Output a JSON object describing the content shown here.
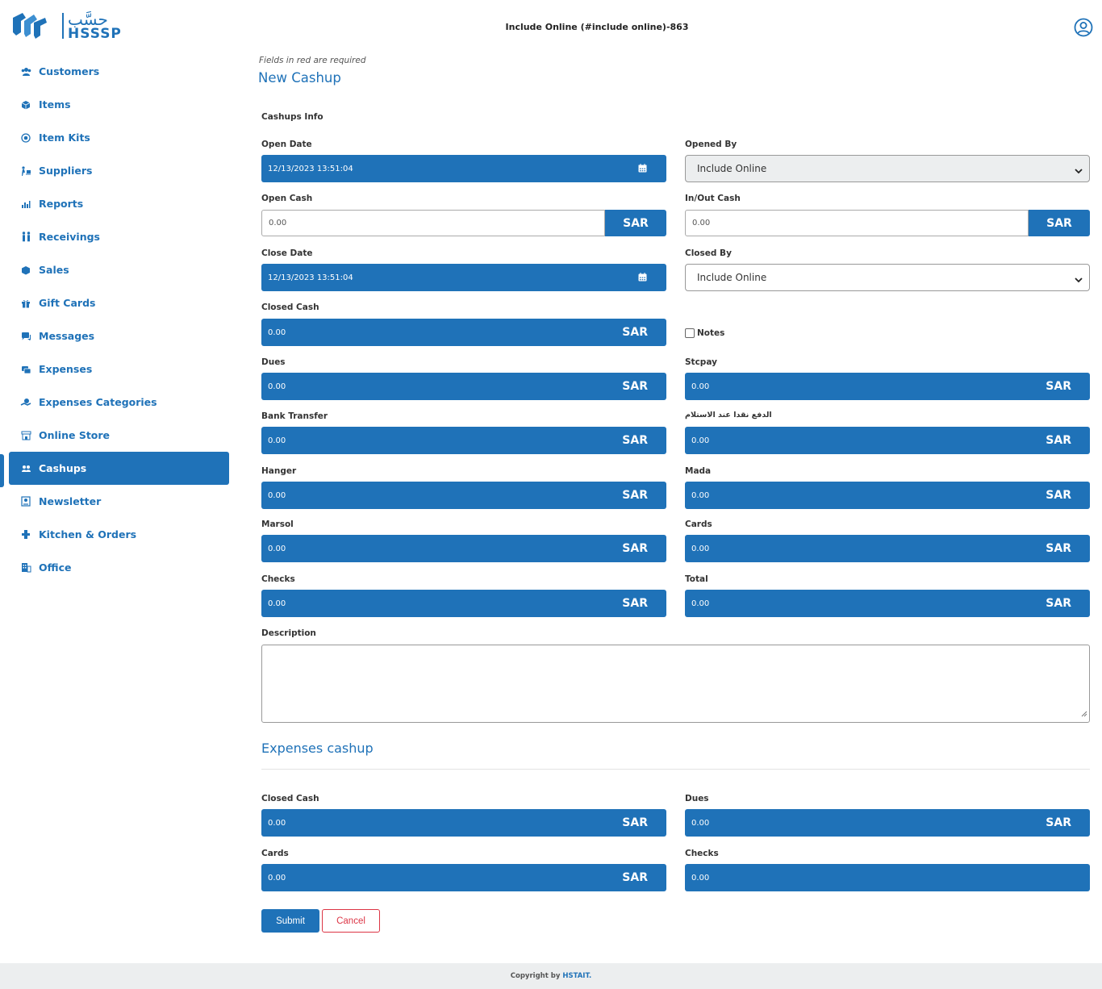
{
  "header": {
    "logo_ar": "حسَّب",
    "logo_en": "HSSSP",
    "title": "Include Online (#include online)-863"
  },
  "sidebar": {
    "items": [
      {
        "label": "Customers",
        "icon": "users-icon"
      },
      {
        "label": "Items",
        "icon": "box-icon"
      },
      {
        "label": "Item Kits",
        "icon": "kit-icon"
      },
      {
        "label": "Suppliers",
        "icon": "supplier-icon"
      },
      {
        "label": "Reports",
        "icon": "chart-icon"
      },
      {
        "label": "Receivings",
        "icon": "receiving-icon"
      },
      {
        "label": "Sales",
        "icon": "sales-icon"
      },
      {
        "label": "Gift Cards",
        "icon": "gift-icon"
      },
      {
        "label": "Messages",
        "icon": "message-icon"
      },
      {
        "label": "Expenses",
        "icon": "expenses-icon"
      },
      {
        "label": "Expenses Categories",
        "icon": "categories-icon"
      },
      {
        "label": "Online Store",
        "icon": "store-icon"
      },
      {
        "label": "Cashups",
        "icon": "cashups-icon",
        "active": true
      },
      {
        "label": "Newsletter",
        "icon": "newsletter-icon"
      },
      {
        "label": "Kitchen & Orders",
        "icon": "kitchen-icon"
      },
      {
        "label": "Office",
        "icon": "office-icon"
      }
    ]
  },
  "form": {
    "required_note": "Fields in red are required",
    "title": "New Cashup",
    "section": "Cashups Info",
    "currency": "SAR",
    "open_date": {
      "label": "Open Date",
      "value": "12/13/2023 13:51:04"
    },
    "opened_by": {
      "label": "Opened By",
      "value": "Include Online"
    },
    "open_cash": {
      "label": "Open Cash",
      "value": "0.00"
    },
    "in_out_cash": {
      "label": "In/Out Cash",
      "value": "0.00"
    },
    "close_date": {
      "label": "Close Date",
      "value": "12/13/2023 13:51:04"
    },
    "closed_by": {
      "label": "Closed By",
      "value": "Include Online"
    },
    "closed_cash": {
      "label": "Closed Cash",
      "value": "0.00"
    },
    "notes": {
      "label": "Notes"
    },
    "dues": {
      "label": "Dues",
      "value": "0.00"
    },
    "stcpay": {
      "label": "Stcpay",
      "value": "0.00"
    },
    "bank_transfer": {
      "label": "Bank Transfer",
      "value": "0.00"
    },
    "cod": {
      "label": "الدفع نقدا عند الاستلام",
      "value": "0.00"
    },
    "hanger": {
      "label": "Hanger",
      "value": "0.00"
    },
    "mada": {
      "label": "Mada",
      "value": "0.00"
    },
    "marsol": {
      "label": "Marsol",
      "value": "0.00"
    },
    "cards": {
      "label": "Cards",
      "value": "0.00"
    },
    "checks": {
      "label": "Checks",
      "value": "0.00"
    },
    "total": {
      "label": "Total",
      "value": "0.00"
    },
    "description": {
      "label": "Description",
      "value": ""
    }
  },
  "expenses": {
    "title": "Expenses cashup",
    "closed_cash": {
      "label": "Closed Cash",
      "value": "0.00"
    },
    "dues": {
      "label": "Dues",
      "value": "0.00"
    },
    "cards": {
      "label": "Cards",
      "value": "0.00"
    },
    "checks": {
      "label": "Checks",
      "value": "0.00"
    }
  },
  "actions": {
    "submit": "Submit",
    "cancel": "Cancel"
  },
  "footer": {
    "text": "Copyright by",
    "brand": "HSTAIT."
  },
  "colors": {
    "primary": "#1f72b8",
    "danger": "#dc3545",
    "footer_bg": "#eceeef"
  }
}
